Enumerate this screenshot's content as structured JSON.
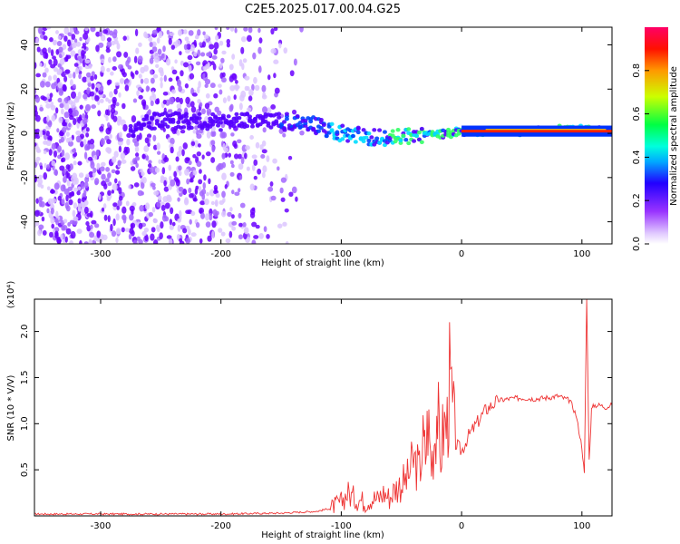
{
  "title": "C2E5.2025.017.00.04.G25",
  "chart_data": [
    {
      "type": "heatmap",
      "xlabel": "Height of straight line (km)",
      "ylabel": "Frequency (Hz)",
      "xlim": [
        -355,
        125
      ],
      "ylim": [
        -50,
        48
      ],
      "xticks": [
        -300,
        -200,
        -100,
        0,
        100
      ],
      "yticks": [
        -40,
        -20,
        0,
        20,
        40
      ],
      "colorbar": {
        "label": "Normalized spectral amplitude",
        "range": [
          0,
          1
        ],
        "ticks": [
          "0.0",
          "0.2",
          "0.4",
          "0.6",
          "0.8"
        ],
        "stops": [
          "#ffffff",
          "#cc99ff",
          "#7700ff",
          "#0000ff",
          "#00ccff",
          "#00ff66",
          "#ccff00",
          "#ff8800",
          "#ff0000",
          "#ff0066"
        ]
      },
      "ridge": {
        "description_points": [
          {
            "x": -270,
            "y": 5
          },
          {
            "x": -240,
            "y": 6
          },
          {
            "x": -200,
            "y": 5
          },
          {
            "x": -170,
            "y": 6
          },
          {
            "x": -130,
            "y": 5
          },
          {
            "x": -100,
            "y": 0
          },
          {
            "x": -70,
            "y": -2
          },
          {
            "x": -40,
            "y": -1
          },
          {
            "x": -10,
            "y": 0
          },
          {
            "x": 0,
            "y": 1
          },
          {
            "x": 30,
            "y": 1
          },
          {
            "x": 60,
            "y": 1
          },
          {
            "x": 90,
            "y": 2
          },
          {
            "x": 120,
            "y": 1
          }
        ]
      }
    },
    {
      "type": "line",
      "xlabel": "Height of straight line (km)",
      "ylabel": "SNR (10 * V/V)",
      "exponent_label": "(x10⁴)",
      "xlim": [
        -355,
        125
      ],
      "ylim": [
        0,
        2.35
      ],
      "xticks": [
        -300,
        -200,
        -100,
        0,
        100
      ],
      "yticks": [
        "0.5",
        "1.0",
        "1.5",
        "2.0"
      ],
      "ytick_values": [
        0.5,
        1.0,
        1.5,
        2.0
      ],
      "color": "#ee3333",
      "series": [
        {
          "x": [
            -355,
            -300,
            -250,
            -200,
            -150,
            -120,
            -110,
            -100,
            -95,
            -90,
            -85,
            -80,
            -75,
            -70,
            -65,
            -60,
            -55,
            -50,
            -45,
            -40,
            -35,
            -32,
            -30,
            -28,
            -25,
            -22,
            -20,
            -18,
            -15,
            -12,
            -10,
            -5,
            0,
            5,
            10,
            15,
            20,
            25,
            30,
            40,
            50,
            60,
            70,
            80,
            90,
            95,
            100,
            102,
            104,
            106,
            108,
            110,
            115,
            120,
            125
          ],
          "y": [
            0.02,
            0.02,
            0.02,
            0.02,
            0.03,
            0.05,
            0.08,
            0.15,
            0.25,
            0.2,
            0.18,
            0.15,
            0.2,
            0.18,
            0.25,
            0.2,
            0.3,
            0.35,
            0.4,
            0.6,
            0.5,
            0.8,
            0.65,
            1.05,
            0.55,
            0.95,
            1.2,
            0.6,
            0.95,
            1.0,
            1.45,
            0.78,
            0.7,
            0.85,
            0.95,
            1.05,
            1.15,
            1.2,
            1.25,
            1.27,
            1.28,
            1.27,
            1.28,
            1.3,
            1.25,
            1.1,
            0.75,
            0.45,
            2.35,
            0.6,
            1.15,
            1.2,
            1.2,
            1.18,
            1.2
          ]
        }
      ]
    }
  ]
}
